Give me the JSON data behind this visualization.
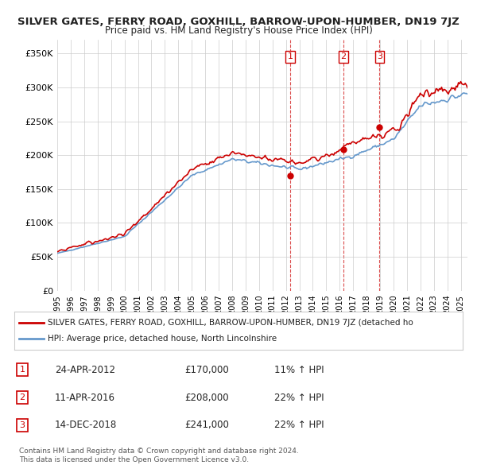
{
  "title": "SILVER GATES, FERRY ROAD, GOXHILL, BARROW-UPON-HUMBER, DN19 7JZ",
  "subtitle": "Price paid vs. HM Land Registry's House Price Index (HPI)",
  "ylabel_ticks": [
    "£0",
    "£50K",
    "£100K",
    "£150K",
    "£200K",
    "£250K",
    "£300K",
    "£350K"
  ],
  "ytick_values": [
    0,
    50000,
    100000,
    150000,
    200000,
    250000,
    300000,
    350000
  ],
  "ylim": [
    0,
    370000
  ],
  "sale_dates_decimal": [
    2012.31,
    2016.28,
    2018.96
  ],
  "sale_prices": [
    170000,
    208000,
    241000
  ],
  "sale_labels": [
    "1",
    "2",
    "3"
  ],
  "legend_red": "SILVER GATES, FERRY ROAD, GOXHILL, BARROW-UPON-HUMBER, DN19 7JZ (detached ho",
  "legend_blue": "HPI: Average price, detached house, North Lincolnshire",
  "table_rows": [
    [
      "1",
      "24-APR-2012",
      "£170,000",
      "11% ↑ HPI"
    ],
    [
      "2",
      "11-APR-2016",
      "£208,000",
      "22% ↑ HPI"
    ],
    [
      "3",
      "14-DEC-2018",
      "£241,000",
      "22% ↑ HPI"
    ]
  ],
  "footer": "Contains HM Land Registry data © Crown copyright and database right 2024.\nThis data is licensed under the Open Government Licence v3.0.",
  "red_color": "#cc0000",
  "blue_color": "#6699cc",
  "vline_color": "#cc0000",
  "grid_color": "#cccccc",
  "background_color": "#ffffff"
}
